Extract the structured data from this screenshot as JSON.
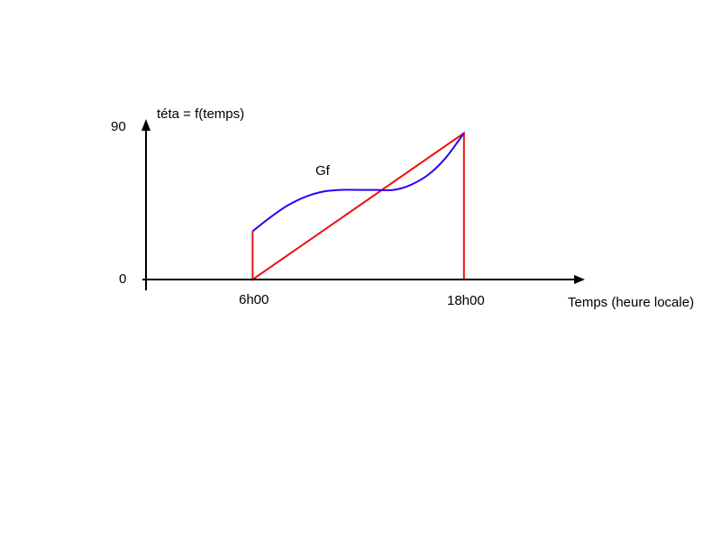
{
  "chart_data": {
    "type": "line",
    "ylabel": "téta = f(temps)",
    "xlabel": "Temps (heure locale)",
    "y_ticks": [
      "0",
      "90"
    ],
    "x_ticks": [
      "6h00",
      "18h00"
    ],
    "ylim": [
      0,
      90
    ],
    "curve_label": "Gf",
    "x_unit": "hours (local time)",
    "series": [
      {
        "name": "Gf",
        "color": "#3300ee",
        "x": [
          6.0,
          7.0,
          8.0,
          9.0,
          10.0,
          11.0,
          12.0,
          13.0,
          14.0,
          15.0,
          16.0,
          17.0,
          18.0
        ],
        "y": [
          28,
          36,
          43,
          48,
          51,
          52,
          52,
          52,
          52,
          55,
          61,
          71,
          85
        ]
      },
      {
        "name": "",
        "color": "#ee1111",
        "x": [
          0,
          6.0,
          6.0,
          6.0,
          18.0,
          18.0,
          18.0,
          24.0
        ],
        "y": [
          0,
          0,
          28,
          0,
          85,
          0,
          0,
          0
        ]
      }
    ],
    "grid": false,
    "colors": {
      "axis": "#000000",
      "curve": "#3300ee",
      "zero_line": "#ee1111"
    }
  }
}
